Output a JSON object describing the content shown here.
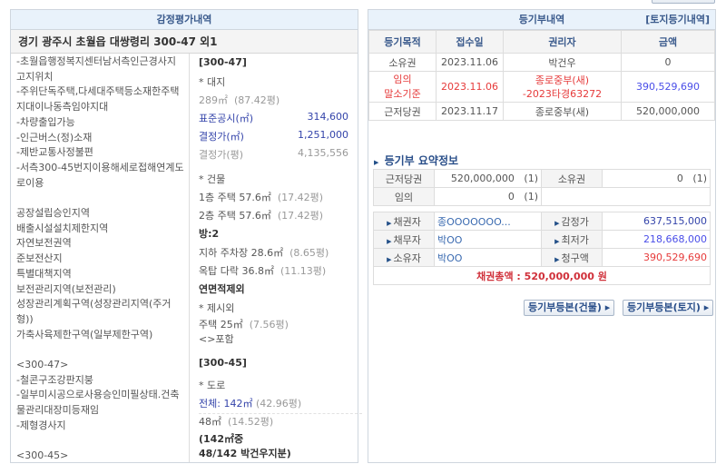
{
  "left_panel": {
    "title": "감정평가내역",
    "address": "경기 광주시 초월읍 대쌍령리 300-47 외1",
    "description": "-초월읍행정복지센터남서측인근경사지고지위치\n-주위단독주택,다세대주택등소재한주택지대이나동측임야지대\n-차량출입가능\n-인근버스(정)소재\n-제반교통사정불편\n-서측300-45번지이용해세로접해연계도로이용\n\n공장설립승인지역\n배출시설설치제한지역\n자연보전권역\n준보전산지\n특별대책지역\n보전관리지역(보전관리)\n성장관리계획구역(성장관리지역(주거형))\n가축사육제한구역(일부제한구역)\n\n<300-47>\n-철콘구조강판지붕\n-일부미시공으로사용승인미필상태.건축물관리대장미등재임\n-제형경사지\n\n<300-45>",
    "details": {
      "lot1": "[300-47]",
      "land_head": "* 대지",
      "land_area": "289㎡",
      "land_pyeong": "(87.42평)",
      "std_price_label": "표준공시(㎡)",
      "std_price": "314,600",
      "decided_label": "결정가(㎡)",
      "decided": "1,251,000",
      "decided_p_label": "결정가(평)",
      "decided_p": "4,135,556",
      "bldg_head": "* 건물",
      "f1": "1층  주택  57.6㎡",
      "f1p": "(17.42평)",
      "f2": "2층  주택  57.6㎡",
      "f2p": "(17.42평)",
      "rooms": "방:2",
      "b1": "지하  주차장  28.6㎡",
      "b1p": "(8.65평)",
      "roof": "옥탑  다락  36.8㎡",
      "roofp": "(11.13평)",
      "excl": "연면적제외",
      "extra_head": "* 제시외",
      "extra": "주택  25㎡",
      "extrap": "(7.56평)",
      "incl": "<>포함",
      "lot2": "[300-45]",
      "road_head": "* 도로",
      "road_total": "전체: 142㎡",
      "road_total_p": "(42.96평)",
      "road_share": "48㎡",
      "road_share_p": "(14.52평)",
      "note1": "(142㎡중",
      "note2": "48/142 박건우지분)"
    }
  },
  "registry": {
    "title": "등기부내역",
    "land_link": "[토지등기내역]",
    "columns": [
      "등기목적",
      "접수일",
      "권리자",
      "금액"
    ],
    "rows": [
      {
        "purpose": "소유권",
        "date": "2023.11.06",
        "holder": "박건우",
        "amount": "0",
        "highlight": false
      },
      {
        "purpose": "임의\n말소기준",
        "date": "2023.11.06",
        "holder": "종로중부(새)\n-2023타경63272",
        "amount": "390,529,690",
        "highlight": true
      },
      {
        "purpose": "근저당권",
        "date": "2023.11.17",
        "holder": "종로중부(새)",
        "amount": "520,000,000",
        "highlight": false
      }
    ]
  },
  "summary": {
    "title": "등기부 요약정보",
    "r1": {
      "l1": "근저당권",
      "v1": "520,000,000",
      "c1": "(1)",
      "l2": "소유권",
      "v2": "0",
      "c2": "(1)"
    },
    "r2": {
      "l1": "임의",
      "v1": "0",
      "c1": "(1)"
    },
    "creditor_label": "채권자",
    "creditor": "종OOOOOOO...",
    "debtor_label": "채무자",
    "debtor": "박OO",
    "owner_label": "소유자",
    "owner": "박OO",
    "appraisal_label": "감정가",
    "appraisal": "637,515,000",
    "minimum_label": "최저가",
    "minimum": "218,668,000",
    "claim_label": "청구액",
    "claim": "390,529,690",
    "total": "채권총액 : 520,000,000 원"
  },
  "buttons": {
    "building": "등기부등본(건물) ▸",
    "land": "등기부등본(토지) ▸"
  },
  "colors": {
    "header_bg": "#e9f2fb",
    "accent_blue": "#3444aa",
    "red": "#e63a3a"
  }
}
